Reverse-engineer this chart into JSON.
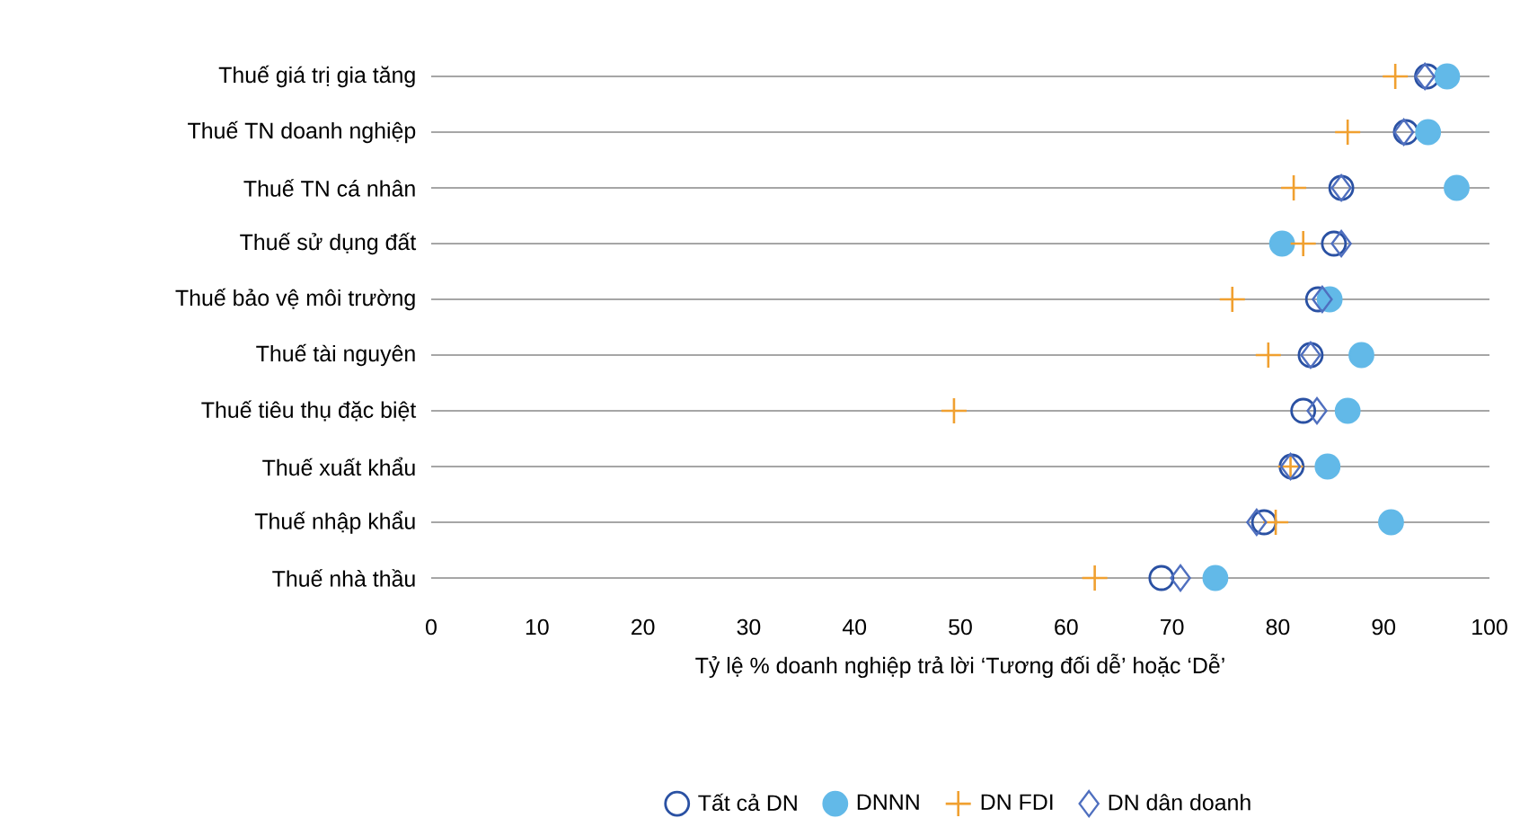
{
  "chart_data": {
    "type": "scatter",
    "orientation": "horizontal",
    "xlabel": "Tỷ lệ % doanh nghiệp trả lời ‘Tương đối dễ’ hoặc ‘Dễ’",
    "categories": [
      "Thuế giá trị gia tăng",
      "Thuế TN doanh nghiệp",
      "Thuế TN cá nhân",
      "Thuế sử dụng đất",
      "Thuế bảo vệ môi trường",
      "Thuế tài nguyên",
      "Thuế tiêu thụ đặc biệt",
      "Thuế xuất khẩu",
      "Thuế nhập khẩu",
      "Thuế nhà thầu"
    ],
    "series": [
      {
        "name": "Tất cả DN",
        "color": "#2a51a3",
        "marker": "circle",
        "values": [
          94.1,
          92.1,
          86.0,
          85.3,
          83.8,
          83.1,
          82.4,
          81.3,
          78.7,
          69.0
        ]
      },
      {
        "name": "DNNN",
        "color": "#62b9e8",
        "marker": "circle",
        "values": [
          96.0,
          94.2,
          96.9,
          80.4,
          84.9,
          87.9,
          86.6,
          84.7,
          90.7,
          74.1
        ]
      },
      {
        "name": "DN FDI",
        "color": "#f0a030",
        "marker": "cross",
        "values": [
          91.1,
          86.6,
          81.5,
          82.4,
          75.7,
          79.1,
          49.4,
          81.2,
          79.8,
          62.7
        ]
      },
      {
        "name": "DN dân doanh",
        "color": "#4f6fbf",
        "marker": "diamond",
        "values": [
          93.9,
          91.9,
          86.0,
          86.0,
          84.2,
          83.1,
          83.7,
          81.2,
          78.0,
          70.8
        ]
      }
    ],
    "xlim": [
      0,
      100
    ],
    "xticks": [
      0,
      10,
      20,
      30,
      40,
      50,
      60,
      70,
      80,
      90,
      100
    ],
    "grid": "y",
    "legend": "bottom"
  }
}
